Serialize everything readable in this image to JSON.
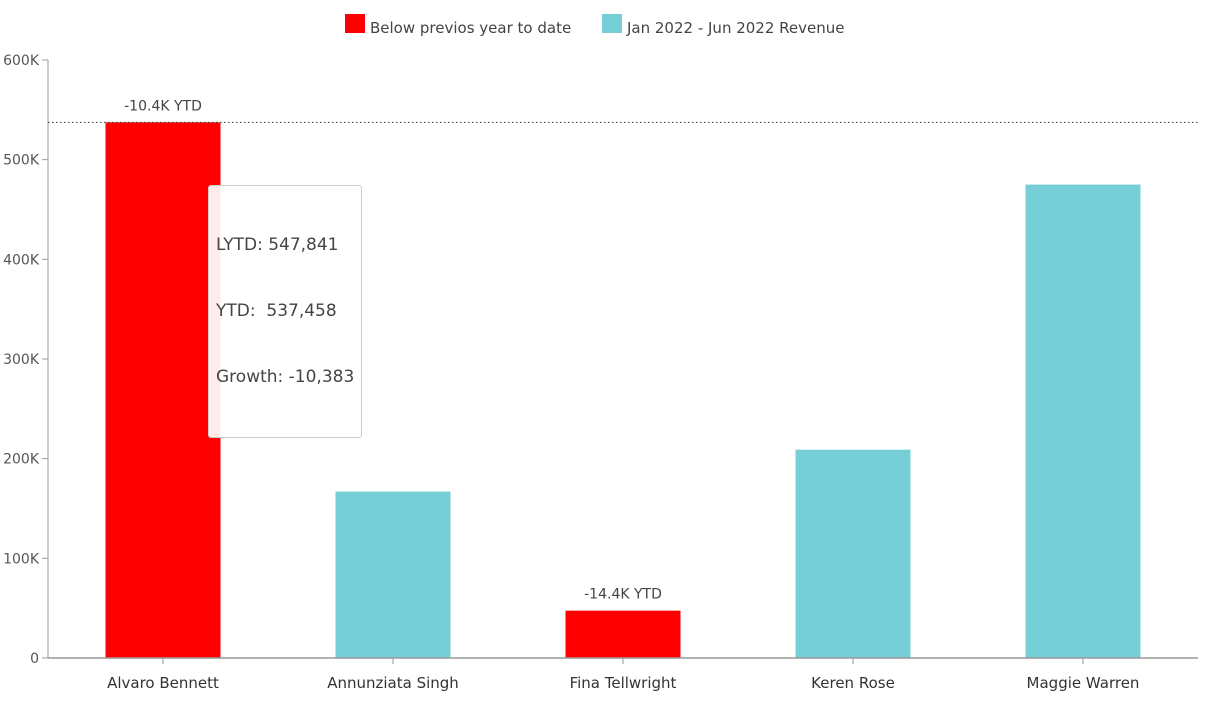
{
  "chart_data": {
    "type": "bar",
    "title": "",
    "xlabel": "",
    "ylabel": "",
    "categories": [
      "Alvaro Bennett",
      "Annunziata Singh",
      "Fina Tellwright",
      "Keren Rose",
      "Maggie Warren"
    ],
    "values": [
      537458,
      167000,
      47500,
      209000,
      475000
    ],
    "below_previous_year": [
      true,
      false,
      true,
      false,
      false
    ],
    "ylim": [
      0,
      600000
    ],
    "yticks": [
      0,
      100000,
      200000,
      300000,
      400000,
      500000,
      600000
    ],
    "ytick_labels": [
      "0",
      "100K",
      "200K",
      "300K",
      "400K",
      "500K",
      "600K"
    ],
    "reference_line": 537458,
    "legend": {
      "placement": "top-center",
      "entries": [
        {
          "label": "Below previos year to date",
          "color": "#ff0000"
        },
        {
          "label": "Jan 2022 - Jun 2022 Revenue",
          "color": "#76cfd7"
        }
      ]
    },
    "annotations": [
      {
        "category": "Alvaro Bennett",
        "text": "-10.4K YTD"
      },
      {
        "category": "Fina Tellwright",
        "text": "-14.4K YTD"
      }
    ],
    "tooltip": {
      "category": "Alvaro Bennett",
      "lines": [
        "LYTD: 547,841",
        "YTD:  537,458",
        "Growth: -10,383"
      ]
    },
    "colors": {
      "below": "#ff0000",
      "normal": "#76cfd7",
      "axis": "#999999",
      "reference": "#333333"
    },
    "grid": false
  }
}
